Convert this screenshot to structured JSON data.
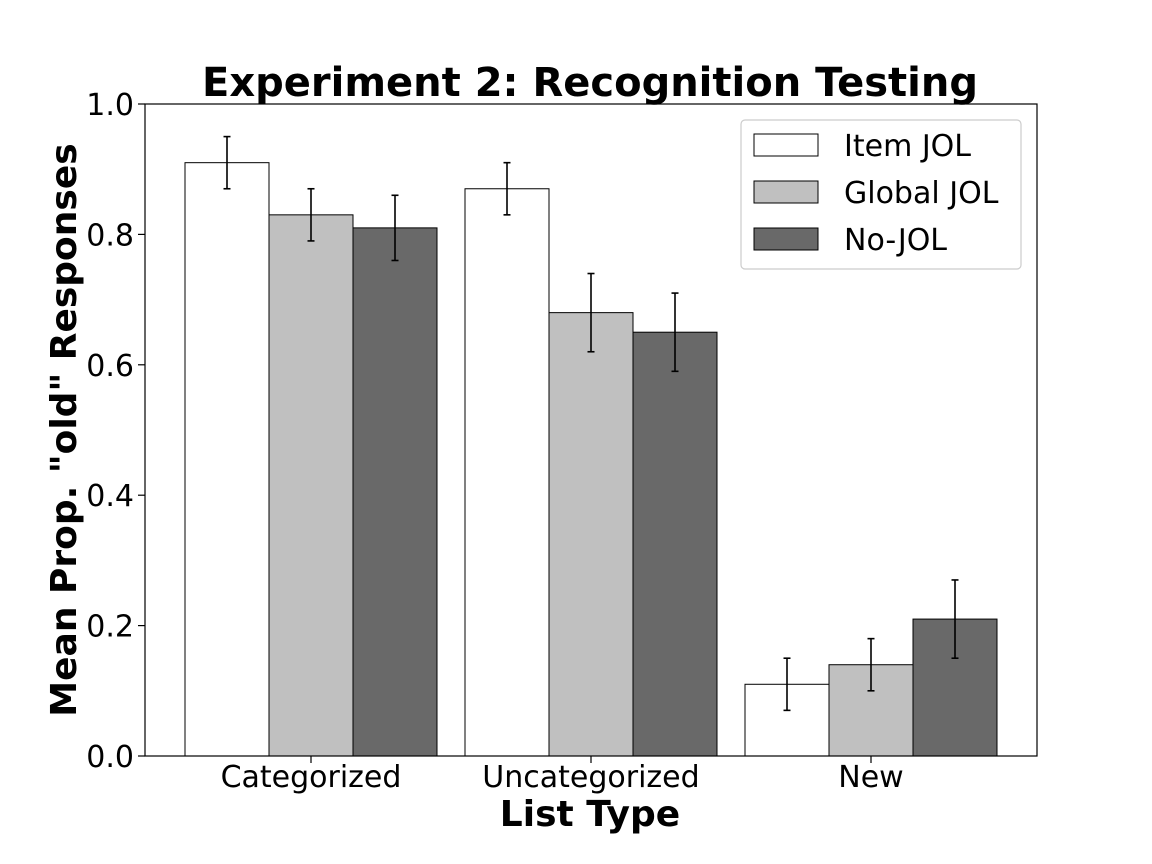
{
  "chart_data": {
    "type": "bar",
    "title": "Experiment 2: Recognition Testing",
    "xlabel": "List Type",
    "ylabel": "Mean Prop. \"old\" Responses",
    "categories": [
      "Categorized",
      "Uncategorized",
      "New"
    ],
    "ylim": [
      0.0,
      1.0
    ],
    "yticks": [
      0.0,
      0.2,
      0.4,
      0.6,
      0.8,
      1.0
    ],
    "ytick_labels": [
      "0.0",
      "0.2",
      "0.4",
      "0.6",
      "0.8",
      "1.0"
    ],
    "grid": false,
    "legend_position": "top-right",
    "series": [
      {
        "name": "Item JOL",
        "color": "#ffffff",
        "values": [
          0.91,
          0.87,
          0.11
        ],
        "errors": [
          0.04,
          0.04,
          0.04
        ]
      },
      {
        "name": "Global JOL",
        "color": "#c0c0c0",
        "values": [
          0.83,
          0.68,
          0.14
        ],
        "errors": [
          0.04,
          0.06,
          0.04
        ]
      },
      {
        "name": "No-JOL",
        "color": "#696969",
        "values": [
          0.81,
          0.65,
          0.21
        ],
        "errors": [
          0.05,
          0.06,
          0.06
        ]
      }
    ]
  }
}
